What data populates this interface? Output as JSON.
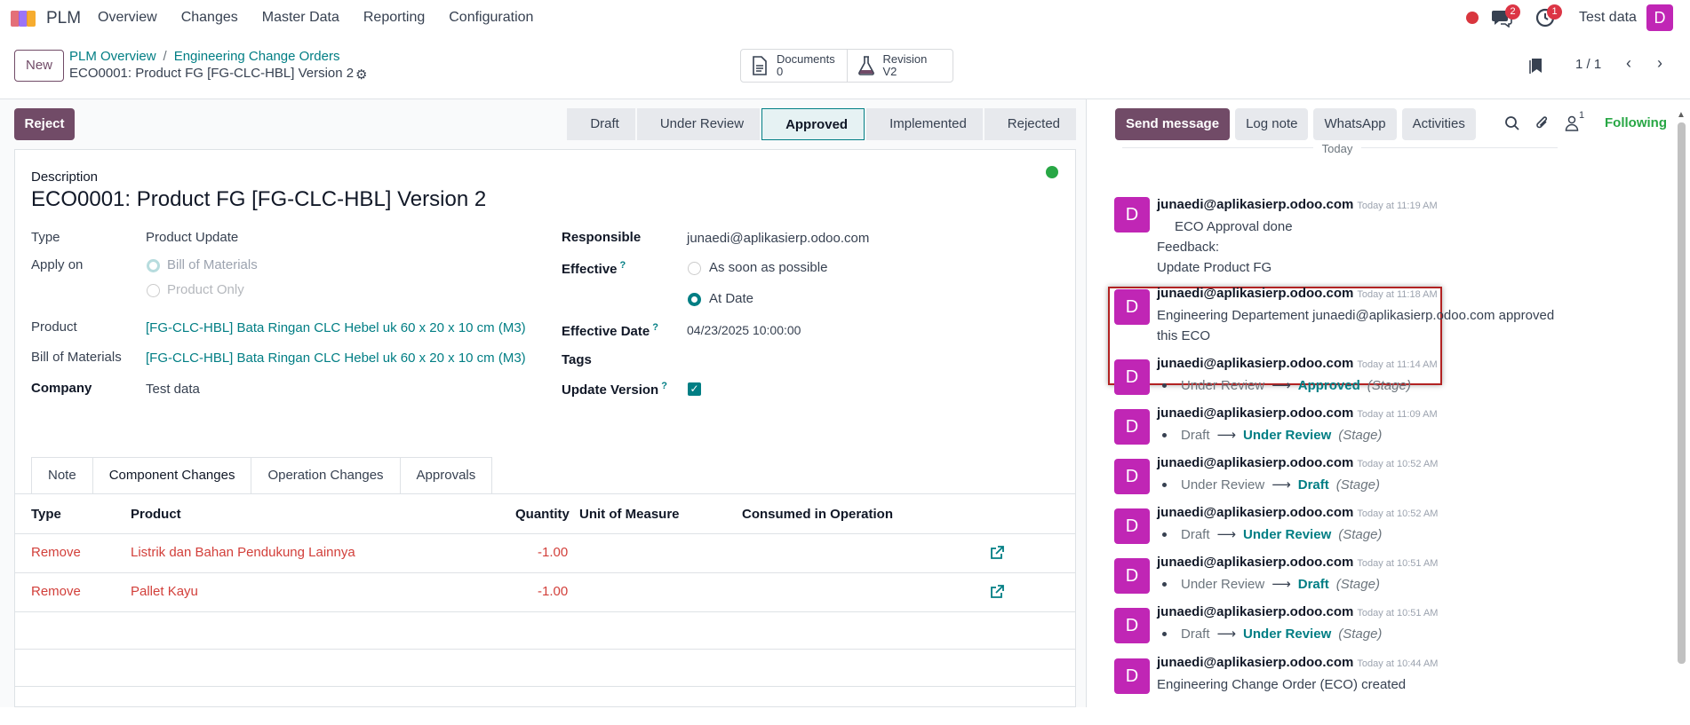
{
  "topbar": {
    "app_name": "PLM",
    "menu": [
      "Overview",
      "Changes",
      "Master Data",
      "Reporting",
      "Configuration"
    ],
    "chat_badge": "2",
    "activity_badge": "1",
    "company": "Test data",
    "user_initial": "D"
  },
  "control_panel": {
    "new_label": "New",
    "breadcrumb": [
      "PLM Overview",
      "Engineering Change Orders"
    ],
    "record_title": "ECO0001: Product FG [FG-CLC-HBL] Version 2",
    "smart_buttons": [
      {
        "label": "Documents",
        "value": "0",
        "icon": "document-icon"
      },
      {
        "label": "Revision",
        "value": "V2",
        "icon": "flask-icon"
      }
    ],
    "pager": "1 / 1"
  },
  "form": {
    "reject_label": "Reject",
    "stages": [
      "Draft",
      "Under Review",
      "Approved",
      "Implemented",
      "Rejected"
    ],
    "active_stage": "Approved",
    "description_label": "Description",
    "description": "ECO0001: Product FG [FG-CLC-HBL] Version 2",
    "fields": {
      "type_label": "Type",
      "type": "Product Update",
      "apply_on_label": "Apply on",
      "apply_on_options": [
        "Bill of Materials",
        "Product Only"
      ],
      "product_label": "Product",
      "product": "[FG-CLC-HBL] Bata Ringan CLC Hebel uk 60 x 20 x 10 cm (M3)",
      "bom_label": "Bill of Materials",
      "bom": "[FG-CLC-HBL] Bata Ringan CLC Hebel uk 60 x 20 x 10 cm (M3)",
      "company_label": "Company",
      "company": "Test data",
      "responsible_label": "Responsible",
      "responsible": "junaedi@aplikasierp.odoo.com",
      "effective_label": "Effective",
      "effective_options": [
        "As soon as possible",
        "At Date"
      ],
      "effective_date_label": "Effective Date",
      "effective_date": "04/23/2025 10:00:00",
      "tags_label": "Tags",
      "update_version_label": "Update Version",
      "help_mark": "?"
    },
    "tabs": [
      "Note",
      "Component Changes",
      "Operation Changes",
      "Approvals"
    ],
    "active_tab": "Component Changes",
    "table": {
      "headers": [
        "Type",
        "Product",
        "Quantity",
        "Unit of Measure",
        "Consumed in Operation"
      ],
      "rows": [
        {
          "type": "Remove",
          "product": "Listrik dan Bahan Pendukung Lainnya",
          "quantity": "-1.00"
        },
        {
          "type": "Remove",
          "product": "Pallet Kayu",
          "quantity": "-1.00"
        }
      ]
    }
  },
  "chatter": {
    "buttons": [
      "Send message",
      "Log note",
      "WhatsApp",
      "Activities"
    ],
    "followers_count": "1",
    "following_label": "Following",
    "date_separator": "Today",
    "messages": [
      {
        "author": "junaedi@aplikasierp.odoo.com",
        "time": "Today at 11:19 AM",
        "lines": [
          "ECO Approval done",
          "Feedback:",
          "Update Product FG"
        ]
      },
      {
        "author": "junaedi@aplikasierp.odoo.com",
        "time": "Today at 11:18 AM",
        "lines": [
          "Engineering Departement junaedi@aplikasierp.odoo.com approved",
          "this ECO"
        ]
      },
      {
        "author": "junaedi@aplikasierp.odoo.com",
        "time": "Today at 11:14 AM",
        "old": "Under Review",
        "new": "Approved",
        "field": "(Stage)"
      },
      {
        "author": "junaedi@aplikasierp.odoo.com",
        "time": "Today at 11:09 AM",
        "old": "Draft",
        "new": "Under Review",
        "field": "(Stage)"
      },
      {
        "author": "junaedi@aplikasierp.odoo.com",
        "time": "Today at 10:52 AM",
        "old": "Under Review",
        "new": "Draft",
        "field": "(Stage)"
      },
      {
        "author": "junaedi@aplikasierp.odoo.com",
        "time": "Today at 10:52 AM",
        "old": "Draft",
        "new": "Under Review",
        "field": "(Stage)"
      },
      {
        "author": "junaedi@aplikasierp.odoo.com",
        "time": "Today at 10:51 AM",
        "old": "Under Review",
        "new": "Draft",
        "field": "(Stage)"
      },
      {
        "author": "junaedi@aplikasierp.odoo.com",
        "time": "Today at 10:51 AM",
        "old": "Draft",
        "new": "Under Review",
        "field": "(Stage)"
      },
      {
        "author": "junaedi@aplikasierp.odoo.com",
        "time": "Today at 10:44 AM",
        "lines": [
          "Engineering Change Order (ECO) created"
        ]
      }
    ],
    "avatar_initial": "D"
  },
  "colors": {
    "brand": "#714b67",
    "teal": "#017e84",
    "avatar": "#c026b5",
    "remove": "#d23f3a",
    "highlight": "#b22222"
  }
}
